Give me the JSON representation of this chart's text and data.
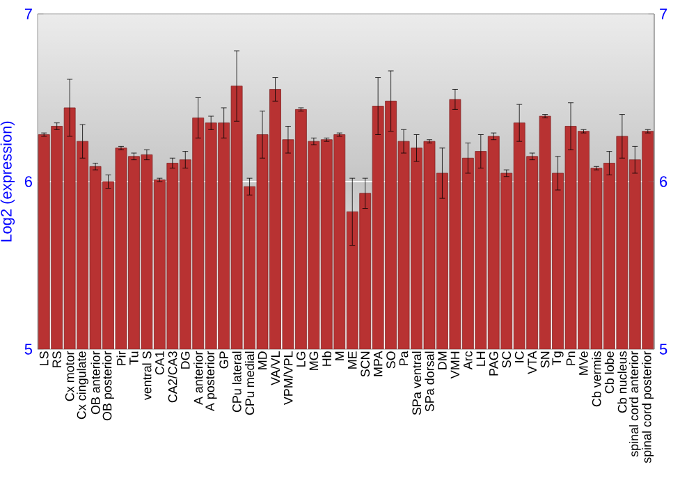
{
  "chart_data": {
    "type": "bar",
    "ylabel": "Log2 (expression)",
    "categories": [
      "LS",
      "RS",
      "Cx motor",
      "Cx cingulate",
      "OB anterior",
      "OB posterior",
      "Pir",
      "Tu",
      "ventral S",
      "CA1",
      "CA2/CA3",
      "DG",
      "A anterior",
      "A posterior",
      "GP",
      "CPu lateral",
      "CPu medial",
      "MD",
      "VA/VL",
      "VPM/VPL",
      "LG",
      "MG",
      "Hb",
      "M",
      "ME",
      "SCN",
      "MPA",
      "SO",
      "Pa",
      "SPa ventral",
      "SPa dorsal",
      "DM",
      "VMH",
      "Arc",
      "LH",
      "PAG",
      "SC",
      "IC",
      "VTA",
      "SN",
      "Tg",
      "Pn",
      "MVe",
      "Cb vermis",
      "Cb lobe",
      "Cb nucleus",
      "spinal cord anterior",
      "spinal cord posterior"
    ],
    "values": [
      6.28,
      6.33,
      6.44,
      6.24,
      6.09,
      6.0,
      6.2,
      6.15,
      6.16,
      6.01,
      6.11,
      6.13,
      6.38,
      6.35,
      6.35,
      6.57,
      5.97,
      6.28,
      6.55,
      6.25,
      6.43,
      6.24,
      6.25,
      6.28,
      5.82,
      5.93,
      6.45,
      6.48,
      6.24,
      6.2,
      6.24,
      6.05,
      6.49,
      6.14,
      6.18,
      6.27,
      6.05,
      6.35,
      6.15,
      6.39,
      6.05,
      6.33,
      6.3,
      6.08,
      6.11,
      6.27,
      6.13,
      6.3
    ],
    "errors": [
      0.01,
      0.02,
      0.17,
      0.1,
      0.02,
      0.04,
      0.01,
      0.02,
      0.03,
      0.01,
      0.03,
      0.05,
      0.12,
      0.04,
      0.09,
      0.21,
      0.05,
      0.14,
      0.07,
      0.08,
      0.01,
      0.02,
      0.01,
      0.01,
      0.2,
      0.09,
      0.17,
      0.18,
      0.07,
      0.08,
      0.01,
      0.15,
      0.06,
      0.09,
      0.1,
      0.02,
      0.02,
      0.11,
      0.02,
      0.01,
      0.1,
      0.14,
      0.01,
      0.01,
      0.07,
      0.13,
      0.08,
      0.01
    ],
    "color": "#b83232",
    "ylim": [
      5,
      7
    ],
    "yticks": [
      5,
      6,
      7
    ],
    "y2lim": [
      5,
      7
    ],
    "y2ticks": [
      5,
      6,
      7
    ],
    "grid": "y"
  }
}
